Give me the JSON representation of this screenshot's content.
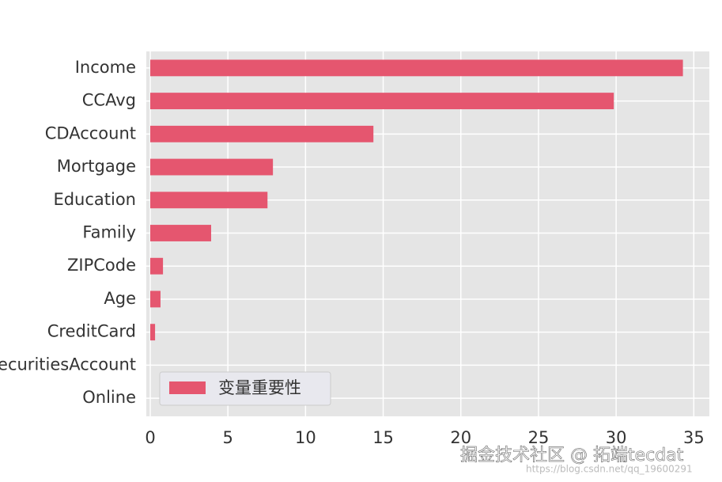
{
  "chart_data": {
    "type": "barh",
    "categories": [
      "Income",
      "CCAvg",
      "CDAccount",
      "Mortgage",
      "Education",
      "Family",
      "ZIPCode",
      "Age",
      "CreditCard",
      "SecuritiesAccount",
      "Online"
    ],
    "series": [
      {
        "name": "变量重要性",
        "color": "#e5566f",
        "values": [
          34.3,
          29.85,
          14.37,
          7.9,
          7.55,
          3.92,
          0.82,
          0.66,
          0.31,
          0,
          0
        ]
      }
    ],
    "xlim": [
      0,
      35.9
    ],
    "xticks": [
      0,
      5,
      10,
      15,
      20,
      25,
      30,
      35
    ],
    "grid": true,
    "legend": "lower left"
  },
  "watermark": {
    "text": "掘金技术社区 @ 拓端tecdat",
    "url": "https://blog.csdn.net/qq_19600291"
  }
}
